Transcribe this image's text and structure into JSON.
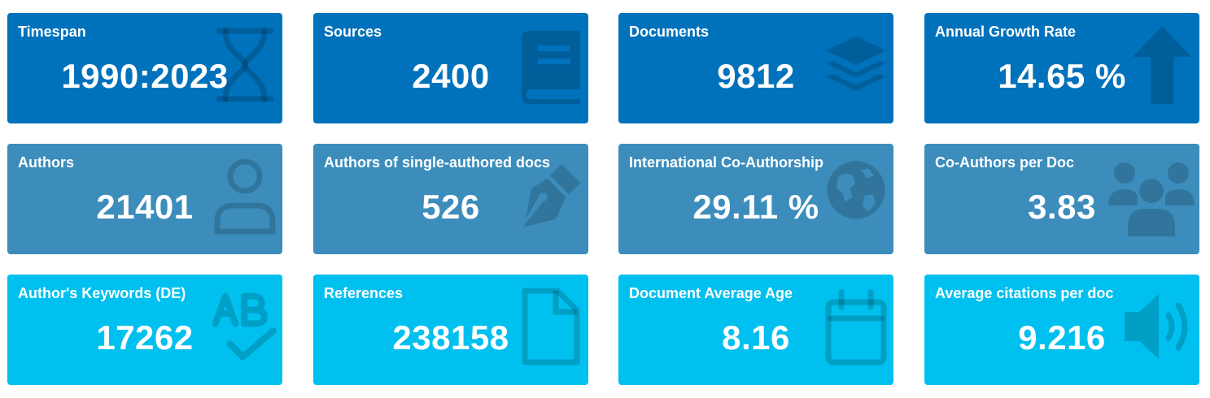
{
  "colors": {
    "row1_bg": "#0072bb",
    "row2_bg": "#3c8dbc",
    "row3_bg": "#00c0ef",
    "icon_overlay": "rgba(0,0,0,0.15)"
  },
  "cards": [
    {
      "label": "Timespan",
      "value": "1990:2023",
      "icon": "hourglass-icon"
    },
    {
      "label": "Sources",
      "value": "2400",
      "icon": "book-icon"
    },
    {
      "label": "Documents",
      "value": "9812",
      "icon": "layers-icon"
    },
    {
      "label": "Annual Growth Rate",
      "value": "14.65 %",
      "icon": "arrow-up-icon"
    },
    {
      "label": "Authors",
      "value": "21401",
      "icon": "user-icon"
    },
    {
      "label": "Authors of single-authored docs",
      "value": "526",
      "icon": "pen-nib-icon"
    },
    {
      "label": "International Co-Authorship",
      "value": "29.11 %",
      "icon": "globe-icon"
    },
    {
      "label": "Co-Authors per Doc",
      "value": "3.83",
      "icon": "users-icon"
    },
    {
      "label": "Author's Keywords (DE)",
      "value": "17262",
      "icon": "spell-check-icon"
    },
    {
      "label": "References",
      "value": "238158",
      "icon": "file-icon"
    },
    {
      "label": "Document Average Age",
      "value": "8.16",
      "icon": "calendar-icon"
    },
    {
      "label": "Average citations per doc",
      "value": "9.216",
      "icon": "volume-icon"
    }
  ]
}
